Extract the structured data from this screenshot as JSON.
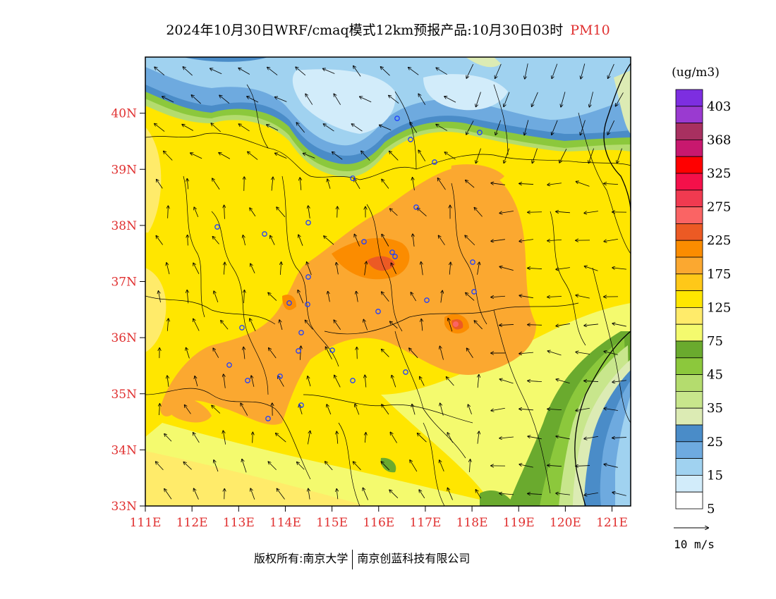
{
  "title": {
    "main": "2024年10月30日WRF/cmaq模式12km预报产品:10月30日03时",
    "variable": "PM10"
  },
  "map": {
    "lat_labels": [
      "40N",
      "39N",
      "38N",
      "37N",
      "36N",
      "35N",
      "34N",
      "33N"
    ],
    "lon_labels": [
      "111E",
      "112E",
      "113E",
      "114E",
      "115E",
      "116E",
      "117E",
      "118E",
      "119E",
      "120E",
      "121E"
    ],
    "lat_range": [
      33,
      41
    ],
    "lon_range": [
      111,
      121.4
    ],
    "label_color": "#e03030"
  },
  "legend": {
    "unit": "(ug/m3)",
    "labels": [
      "403",
      "368",
      "325",
      "275",
      "225",
      "175",
      "125",
      "75",
      "45",
      "35",
      "25",
      "15",
      "5"
    ],
    "colors": [
      "#7d2ee0",
      "#9a3ad0",
      "#a83060",
      "#c8186e",
      "#ff0000",
      "#f4104a",
      "#f03a50",
      "#fa6464",
      "#ec5a24",
      "#fb8c00",
      "#fba830",
      "#ffc818",
      "#ffe600",
      "#ffeb6a",
      "#f4fa6e",
      "#6aaa2e",
      "#8cc83c",
      "#b4dc6e",
      "#c8e68c",
      "#dcebb4",
      "#4a8cc8",
      "#6eaadf",
      "#a0d2f0",
      "#d2ecfa",
      "#ffffff"
    ]
  },
  "wind_scale": {
    "label": "10 m/s"
  },
  "credit": {
    "left": "版权所有:南京大学",
    "right": "南京创蓝科技有限公司"
  }
}
